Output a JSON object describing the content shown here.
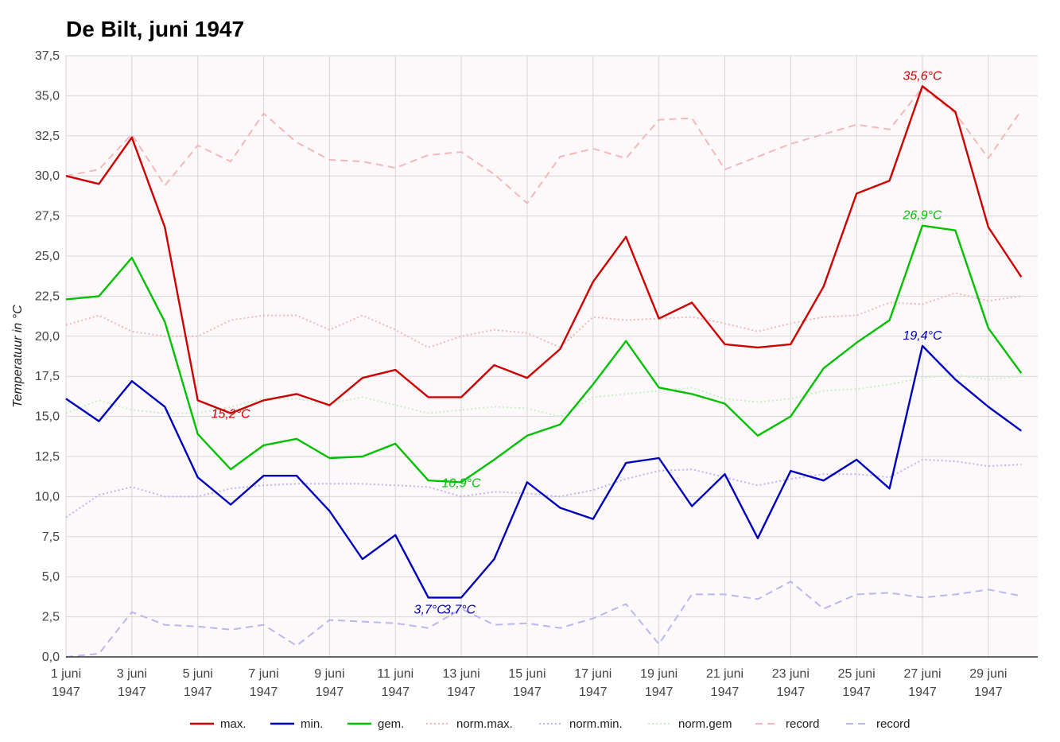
{
  "chart_data": {
    "type": "line",
    "title": "De Bilt, juni 1947",
    "ylabel": "Temperatuur in °C",
    "xlabel": "",
    "ylim": [
      0,
      37.5
    ],
    "yticks": [
      "0,0",
      "2,5",
      "5,0",
      "7,5",
      "10,0",
      "12,5",
      "15,0",
      "17,5",
      "20,0",
      "22,5",
      "25,0",
      "27,5",
      "30,0",
      "32,5",
      "35,0",
      "37,5"
    ],
    "x": [
      1,
      2,
      3,
      4,
      5,
      6,
      7,
      8,
      9,
      10,
      11,
      12,
      13,
      14,
      15,
      16,
      17,
      18,
      19,
      20,
      21,
      22,
      23,
      24,
      25,
      26,
      27,
      28,
      29,
      30
    ],
    "xtick_labels": [
      {
        "day": 1,
        "line1": "1 juni",
        "line2": "1947"
      },
      {
        "day": 3,
        "line1": "3 juni",
        "line2": "1947"
      },
      {
        "day": 5,
        "line1": "5 juni",
        "line2": "1947"
      },
      {
        "day": 7,
        "line1": "7 juni",
        "line2": "1947"
      },
      {
        "day": 9,
        "line1": "9 juni",
        "line2": "1947"
      },
      {
        "day": 11,
        "line1": "11 juni",
        "line2": "1947"
      },
      {
        "day": 13,
        "line1": "13 juni",
        "line2": "1947"
      },
      {
        "day": 15,
        "line1": "15 juni",
        "line2": "1947"
      },
      {
        "day": 17,
        "line1": "17 juni",
        "line2": "1947"
      },
      {
        "day": 19,
        "line1": "19 juni",
        "line2": "1947"
      },
      {
        "day": 21,
        "line1": "21 juni",
        "line2": "1947"
      },
      {
        "day": 23,
        "line1": "23 juni",
        "line2": "1947"
      },
      {
        "day": 25,
        "line1": "25 juni",
        "line2": "1947"
      },
      {
        "day": 27,
        "line1": "27 juni",
        "line2": "1947"
      },
      {
        "day": 29,
        "line1": "29 juni",
        "line2": "1947"
      }
    ],
    "grid": true,
    "legend_position": "bottom",
    "series": [
      {
        "name": "max.",
        "color": "#cc0000",
        "style": "solid",
        "values": [
          30.0,
          29.5,
          32.4,
          26.8,
          16.0,
          15.2,
          16.0,
          16.4,
          15.7,
          17.4,
          17.9,
          16.2,
          16.2,
          18.2,
          17.4,
          19.2,
          23.4,
          26.2,
          21.1,
          22.1,
          19.5,
          19.3,
          19.5,
          23.1,
          28.9,
          29.7,
          35.6,
          34.0,
          26.8,
          23.7
        ]
      },
      {
        "name": "min.",
        "color": "#0000bb",
        "style": "solid",
        "values": [
          16.1,
          14.7,
          17.2,
          15.6,
          11.2,
          9.5,
          11.3,
          11.3,
          9.1,
          6.1,
          7.6,
          3.7,
          3.7,
          6.1,
          10.9,
          9.3,
          8.6,
          12.1,
          12.4,
          9.4,
          11.4,
          7.4,
          11.6,
          11.0,
          12.3,
          10.5,
          19.4,
          17.3,
          15.6,
          14.1
        ]
      },
      {
        "name": "gem.",
        "color": "#00c000",
        "style": "solid",
        "values": [
          22.3,
          22.5,
          24.9,
          20.9,
          13.9,
          11.7,
          13.2,
          13.6,
          12.4,
          12.5,
          13.3,
          11.0,
          10.9,
          12.3,
          13.8,
          14.5,
          17.0,
          19.7,
          16.8,
          16.4,
          15.8,
          13.8,
          15.0,
          18.0,
          19.6,
          21.0,
          26.9,
          26.6,
          20.5,
          17.7
        ]
      },
      {
        "name": "norm.max.",
        "color": "#f4b8b8",
        "style": "dotted",
        "values": [
          20.7,
          21.3,
          20.3,
          20.0,
          20.0,
          21.0,
          21.3,
          21.3,
          20.4,
          21.3,
          20.4,
          19.3,
          20.0,
          20.4,
          20.2,
          19.3,
          21.2,
          21.0,
          21.1,
          21.2,
          20.8,
          20.3,
          20.8,
          21.2,
          21.3,
          22.1,
          22.0,
          22.7,
          22.2,
          22.5
        ]
      },
      {
        "name": "norm.min.",
        "color": "#b8b8f0",
        "style": "dotted",
        "values": [
          8.7,
          10.1,
          10.6,
          10.0,
          10.0,
          10.5,
          10.7,
          10.8,
          10.8,
          10.8,
          10.7,
          10.6,
          10.0,
          10.3,
          10.2,
          10.0,
          10.4,
          11.1,
          11.6,
          11.7,
          11.2,
          10.7,
          11.1,
          11.4,
          11.4,
          11.2,
          12.3,
          12.2,
          11.9,
          12.0
        ]
      },
      {
        "name": "norm.gem",
        "color": "#c4f0c4",
        "style": "dotted",
        "values": [
          15.2,
          16.0,
          15.4,
          15.2,
          15.2,
          15.6,
          16.1,
          16.1,
          15.8,
          16.2,
          15.7,
          15.2,
          15.4,
          15.6,
          15.5,
          15.0,
          16.2,
          16.4,
          16.6,
          16.8,
          16.1,
          15.9,
          16.1,
          16.6,
          16.7,
          17.0,
          17.4,
          17.6,
          17.3,
          17.5
        ]
      },
      {
        "name": "record",
        "color": "#f4b8b8",
        "style": "dashed",
        "values": [
          30.0,
          30.4,
          32.6,
          29.4,
          31.9,
          30.9,
          33.9,
          32.1,
          31.0,
          30.9,
          30.5,
          31.3,
          31.5,
          30.1,
          28.3,
          31.2,
          31.7,
          31.1,
          33.5,
          33.6,
          30.4,
          31.2,
          32.0,
          32.6,
          33.2,
          32.9,
          35.5,
          33.9,
          31.1,
          34.1
        ]
      },
      {
        "name": "record",
        "color": "#b8b8f0",
        "style": "dashed",
        "values": [
          0.0,
          0.2,
          2.8,
          2.0,
          1.9,
          1.7,
          2.0,
          0.7,
          2.3,
          2.2,
          2.1,
          1.8,
          3.0,
          2.0,
          2.1,
          1.8,
          2.4,
          3.3,
          0.8,
          3.9,
          3.9,
          3.6,
          4.7,
          3.0,
          3.9,
          4.0,
          3.7,
          3.9,
          4.2,
          3.8
        ]
      }
    ],
    "annotations": [
      {
        "text": "35,6°C",
        "day": 27,
        "value": 35.6,
        "color": "#cc0000",
        "pos": "above"
      },
      {
        "text": "26,9°C",
        "day": 27,
        "value": 26.9,
        "color": "#00c000",
        "pos": "above"
      },
      {
        "text": "19,4°C",
        "day": 27,
        "value": 19.4,
        "color": "#0000bb",
        "pos": "above"
      },
      {
        "text": "15,2°C",
        "day": 6,
        "value": 15.2,
        "color": "#cc0000",
        "pos": "center"
      },
      {
        "text": "10,9°C",
        "day": 13,
        "value": 10.9,
        "color": "#00c000",
        "pos": "center"
      },
      {
        "text": "3,7°C",
        "day": 12,
        "value": 3.7,
        "color": "#0000bb",
        "pos": "below"
      },
      {
        "text": "3,7°C",
        "day": 13,
        "value": 3.7,
        "color": "#0000bb",
        "pos": "below"
      }
    ]
  }
}
